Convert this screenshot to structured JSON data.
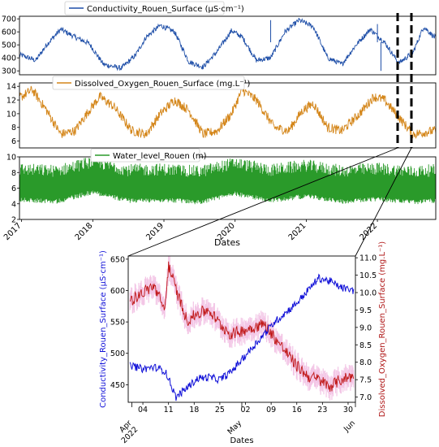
{
  "colors": {
    "conductivity": "#1f4fa8",
    "oxygen": "#d4861a",
    "water": "#2a9a2a",
    "zoom_cond": "#1212d8",
    "zoom_oxy": "#c01818",
    "zoom_oxy_band": "#f3c6e6"
  },
  "chart_data": [
    {
      "type": "line",
      "panel": "top",
      "series": [
        {
          "name": "Conductivity_Rouen_Surface (µS·cm⁻¹)",
          "x": [
            2017.0,
            2017.2,
            2017.35,
            2017.55,
            2017.75,
            2017.95,
            2018.15,
            2018.4,
            2018.6,
            2018.75,
            2018.95,
            2019.15,
            2019.35,
            2019.55,
            2019.75,
            2019.95,
            2020.1,
            2020.3,
            2020.5,
            2020.7,
            2020.9,
            2021.1,
            2021.3,
            2021.5,
            2021.7,
            2021.9,
            2022.1,
            2022.3,
            2022.5,
            2022.65,
            2022.8
          ],
          "values": [
            420,
            380,
            500,
            620,
            560,
            510,
            350,
            320,
            420,
            560,
            650,
            600,
            370,
            330,
            450,
            610,
            560,
            380,
            400,
            600,
            690,
            640,
            400,
            350,
            500,
            620,
            520,
            360,
            440,
            640,
            560
          ]
        }
      ],
      "yticks": [
        300,
        400,
        500,
        600,
        700
      ],
      "ylim": [
        270,
        720
      ],
      "legend": "top-center",
      "grid": false
    },
    {
      "type": "line",
      "panel": "middle",
      "series": [
        {
          "name": "Dissolved_Oxygen_Rouen_Surface (mg.L⁻¹)",
          "x": [
            2017.0,
            2017.15,
            2017.35,
            2017.55,
            2017.75,
            2017.95,
            2018.1,
            2018.3,
            2018.55,
            2018.75,
            2018.95,
            2019.15,
            2019.35,
            2019.55,
            2019.75,
            2019.95,
            2020.1,
            2020.3,
            2020.55,
            2020.75,
            2020.95,
            2021.1,
            2021.3,
            2021.5,
            2021.75,
            2021.95,
            2022.1,
            2022.3,
            2022.5,
            2022.8
          ],
          "values": [
            12.5,
            13.5,
            10.5,
            7.0,
            7.5,
            10.5,
            12.5,
            11.0,
            7.5,
            7.0,
            10.0,
            12.0,
            10.5,
            7.0,
            7.5,
            10.0,
            13.5,
            12.0,
            8.0,
            7.5,
            10.5,
            11.5,
            8.0,
            7.5,
            10.0,
            12.5,
            12.0,
            9.5,
            7.0,
            7.5
          ]
        }
      ],
      "yticks": [
        6,
        8,
        10,
        12,
        14
      ],
      "ylim": [
        5,
        14.5
      ],
      "legend": "top-center",
      "grid": false
    },
    {
      "type": "line",
      "panel": "bottom",
      "series": [
        {
          "name": "Water_level_Rouen (m)",
          "x": [
            2017.0,
            2017.5,
            2018.0,
            2018.5,
            2019.0,
            2019.5,
            2020.0,
            2020.5,
            2021.0,
            2021.5,
            2022.0,
            2022.5,
            2022.8
          ],
          "values": [
            6.0,
            5.8,
            7.0,
            5.9,
            6.0,
            5.7,
            6.8,
            5.9,
            6.5,
            5.8,
            6.1,
            5.7,
            5.9
          ]
        }
      ],
      "yticks": [
        2,
        4,
        6,
        8,
        10
      ],
      "ylim": [
        2,
        10
      ],
      "xticks": [
        "2017",
        "2018",
        "2019",
        "2020",
        "2021",
        "2022"
      ],
      "xlabel": "Dates",
      "legend": "top-center",
      "grid": false
    },
    {
      "type": "line",
      "panel": "zoom",
      "x_dates": [
        "2022-04-01",
        "2022-04-04",
        "2022-04-07",
        "2022-04-10",
        "2022-04-11",
        "2022-04-13",
        "2022-04-16",
        "2022-04-19",
        "2022-04-22",
        "2022-04-25",
        "2022-04-28",
        "2022-05-01",
        "2022-05-04",
        "2022-05-07",
        "2022-05-10",
        "2022-05-13",
        "2022-05-16",
        "2022-05-19",
        "2022-05-22",
        "2022-05-25",
        "2022-05-28",
        "2022-05-31"
      ],
      "series": [
        {
          "axis": "left",
          "values": [
            480,
            475,
            478,
            472,
            460,
            430,
            445,
            460,
            462,
            458,
            470,
            490,
            510,
            530,
            550,
            565,
            580,
            600,
            620,
            615,
            605,
            600
          ]
        },
        {
          "axis": "right",
          "values": [
            9.8,
            10.0,
            10.2,
            9.5,
            10.8,
            10.1,
            9.2,
            9.4,
            9.5,
            9.1,
            8.8,
            8.9,
            9.0,
            9.1,
            8.7,
            8.3,
            7.9,
            7.6,
            7.5,
            7.3,
            7.5,
            7.6
          ]
        }
      ],
      "ylabel": "Conductivity_Rouen_Surface (µS·cm⁻¹)",
      "y2label": "Dissolved_Oxygen_Rouen_Surface (mg.L⁻¹)",
      "yticks": [
        450,
        500,
        550,
        600,
        650
      ],
      "ylim": [
        422,
        655
      ],
      "y2ticks": [
        "7.0",
        "7.5",
        "8.0",
        "8.5",
        "9.0",
        "9.5",
        "10.0",
        "10.5",
        "11.0"
      ],
      "y2lim": [
        6.85,
        11.05
      ],
      "xticks": [
        {
          "label": "04",
          "date": "2022-04-04"
        },
        {
          "label": "11",
          "date": "2022-04-11"
        },
        {
          "label": "18",
          "date": "2022-04-18"
        },
        {
          "label": "25",
          "date": "2022-04-25"
        },
        {
          "label": "02",
          "date": "2022-05-02"
        },
        {
          "label": "09",
          "date": "2022-05-09"
        },
        {
          "label": "16",
          "date": "2022-05-16"
        },
        {
          "label": "23",
          "date": "2022-05-23"
        },
        {
          "label": "30",
          "date": "2022-05-30"
        }
      ],
      "xmajor": [
        {
          "label": "Apr\n2022",
          "date": "2022-04-01"
        },
        {
          "label": "May",
          "date": "2022-05-01"
        },
        {
          "label": "Jun",
          "date": "2022-06-01"
        }
      ],
      "xlim": [
        "2022-03-31",
        "2022-06-01"
      ],
      "xlabel": "Dates"
    }
  ]
}
